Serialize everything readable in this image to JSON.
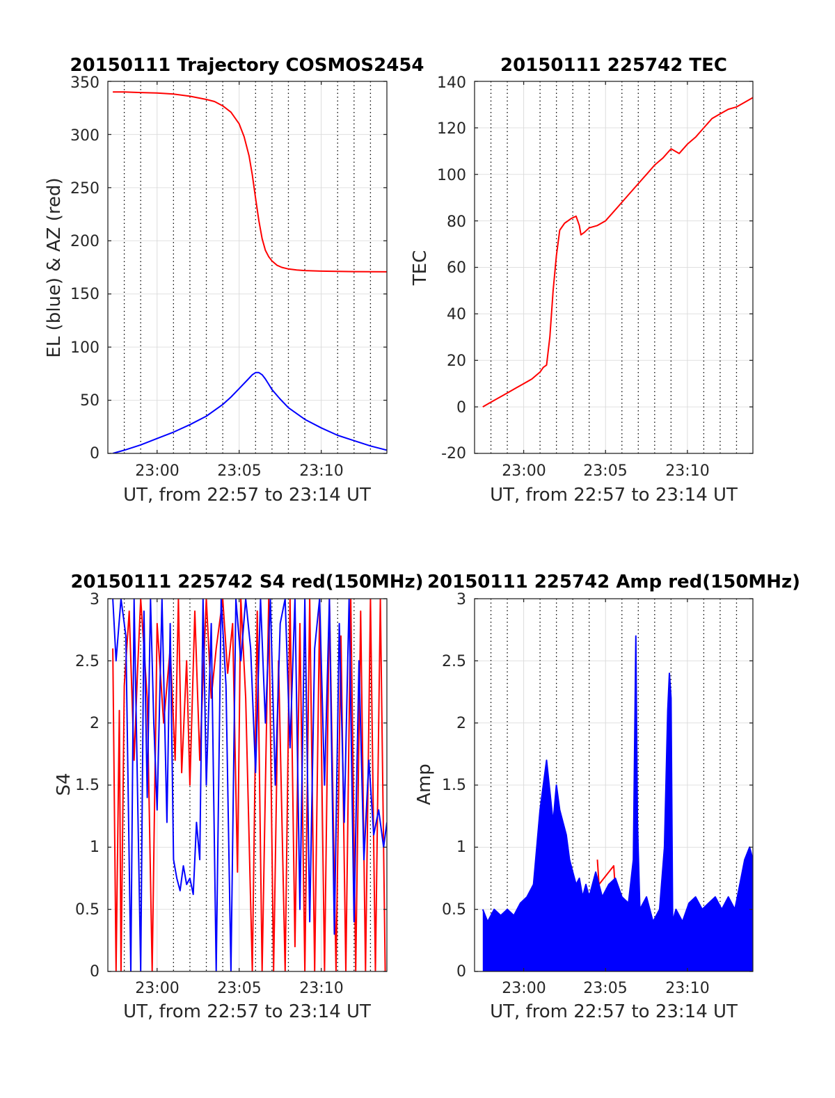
{
  "figure": {
    "background": "#ffffff"
  },
  "chart_data": [
    {
      "type": "line",
      "title": "20150111 Trajectory COSMOS2454",
      "xlabel": "UT, from 22:57 to 23:14 UT",
      "ylabel": "EL (blue) & AZ (red)",
      "x_unit": "minutes after 23:00 UT",
      "xlim": [
        -3.0,
        14.0
      ],
      "ylim": [
        0,
        350
      ],
      "xticks": [
        0,
        5,
        10
      ],
      "xtick_labels": [
        "23:00",
        "23:05",
        "23:10"
      ],
      "yticks": [
        0,
        50,
        100,
        150,
        200,
        250,
        300,
        350
      ],
      "ytick_labels": [
        "0",
        "50",
        "100",
        "150",
        "200",
        "250",
        "300",
        "350"
      ],
      "minor_x_grid": [
        -2,
        -1,
        1,
        2,
        3,
        4,
        6,
        7,
        8,
        9,
        11,
        12,
        13
      ],
      "grid": true,
      "series": [
        {
          "color": "#ff0000",
          "x": [
            -2.7,
            -2,
            -1,
            0,
            1,
            2,
            3,
            3.5,
            4,
            4.5,
            5,
            5.3,
            5.6,
            5.8,
            6,
            6.2,
            6.4,
            6.6,
            6.8,
            7.0,
            7.3,
            7.6,
            8,
            8.5,
            9,
            10,
            11,
            12,
            13,
            14
          ],
          "y": [
            340,
            340,
            339.5,
            339,
            338,
            336,
            333,
            331,
            327,
            321,
            310,
            298,
            280,
            262,
            240,
            219,
            202,
            191,
            185,
            181,
            177,
            175,
            173.5,
            172.5,
            172,
            171.5,
            171.2,
            171,
            170.9,
            170.8
          ]
        },
        {
          "color": "#0000ff",
          "x": [
            -2.7,
            -2,
            -1,
            0,
            1,
            2,
            3,
            4,
            4.5,
            5,
            5.5,
            5.8,
            6.0,
            6.2,
            6.4,
            6.6,
            6.8,
            7,
            7.5,
            8,
            9,
            10,
            11,
            12,
            13,
            14
          ],
          "y": [
            0,
            3,
            8,
            14,
            20,
            27,
            35,
            46,
            53,
            61,
            69,
            74,
            76,
            76,
            74,
            70,
            65,
            60,
            51,
            43,
            32,
            24,
            17,
            12,
            7,
            3
          ]
        }
      ]
    },
    {
      "type": "line",
      "title": "20150111 225742 TEC",
      "xlabel": "UT, from 22:57 to 23:14 UT",
      "ylabel": "TEC",
      "x_unit": "minutes after 23:00 UT",
      "xlim": [
        -3.0,
        14.0
      ],
      "ylim": [
        -20,
        140
      ],
      "xticks": [
        0,
        5,
        10
      ],
      "xtick_labels": [
        "23:00",
        "23:05",
        "23:10"
      ],
      "yticks": [
        -20,
        0,
        20,
        40,
        60,
        80,
        100,
        120,
        140
      ],
      "ytick_labels": [
        "-20",
        "0",
        "20",
        "40",
        "60",
        "80",
        "100",
        "120",
        "140"
      ],
      "minor_x_grid": [
        -2,
        -1,
        1,
        2,
        3,
        4,
        6,
        7,
        8,
        9,
        11,
        12,
        13
      ],
      "grid": true,
      "series": [
        {
          "color": "#ff0000",
          "x": [
            -2.5,
            -2,
            -1.5,
            -1,
            -0.5,
            0,
            0.5,
            1,
            1.2,
            1.4,
            1.6,
            1.8,
            2.0,
            2.2,
            2.5,
            2.9,
            3.2,
            3.4,
            3.5,
            3.7,
            4,
            4.5,
            5,
            5.5,
            6,
            6.5,
            7,
            7.5,
            8,
            8.5,
            9,
            9.5,
            10,
            10.5,
            11,
            11.5,
            12,
            12.5,
            13,
            13.5,
            14
          ],
          "y": [
            0,
            2,
            4,
            6,
            8,
            10,
            12,
            15,
            17,
            18,
            30,
            50,
            65,
            76,
            79,
            81,
            82,
            78,
            74,
            75,
            77,
            78,
            80,
            84,
            88,
            92,
            96,
            100,
            104,
            107,
            111,
            109,
            113,
            116,
            120,
            124,
            126,
            128,
            129,
            131,
            133
          ]
        }
      ]
    },
    {
      "type": "line",
      "title": "20150111 225742 S4 red(150MHz)",
      "xlabel": "UT, from 22:57 to 23:14 UT",
      "ylabel": "S4",
      "x_unit": "minutes after 23:00 UT",
      "xlim": [
        -3.0,
        14.0
      ],
      "ylim": [
        0,
        3
      ],
      "xticks": [
        0,
        5,
        10
      ],
      "xtick_labels": [
        "23:00",
        "23:05",
        "23:10"
      ],
      "yticks": [
        0,
        0.5,
        1,
        1.5,
        2,
        2.5,
        3
      ],
      "ytick_labels": [
        "0",
        "0.5",
        "1",
        "1.5",
        "2",
        "2.5",
        "3"
      ],
      "minor_x_grid": [
        -2,
        -1,
        1,
        2,
        3,
        4,
        6,
        7,
        8,
        9,
        11,
        12,
        13
      ],
      "grid": true,
      "series": [
        {
          "color": "#ff0000",
          "x": [
            -2.7,
            -2.5,
            -2.3,
            -2.2,
            -2.0,
            -1.7,
            -1.4,
            -1.2,
            -1,
            -0.6,
            -0.3,
            0,
            0.4,
            0.8,
            1.1,
            1.3,
            1.5,
            1.8,
            2,
            2.3,
            2.6,
            3.0,
            3.3,
            3.6,
            4,
            4.3,
            4.6,
            4.9,
            5.1,
            5.4,
            5.8,
            6.1,
            6.4,
            6.8,
            7.1,
            7.4,
            7.8,
            8.1,
            8.4,
            8.7,
            9.0,
            9.3,
            9.6,
            9.9,
            10.2,
            10.5,
            10.9,
            11.2,
            11.5,
            11.8,
            12.1,
            12.4,
            12.7,
            13,
            13.3,
            13.6,
            13.9
          ],
          "y": [
            2.6,
            0,
            2.1,
            0,
            2.3,
            2.9,
            1.7,
            2.4,
            3,
            2.2,
            0,
            2.8,
            2.0,
            2.6,
            1.7,
            3,
            1.6,
            2.5,
            1.5,
            2.9,
            1.7,
            3,
            2.2,
            2.6,
            3,
            2.4,
            2.8,
            0.8,
            3,
            2.2,
            0,
            2.9,
            0,
            3,
            0,
            2.5,
            0,
            3,
            0.2,
            2.8,
            0,
            3,
            0,
            2.9,
            0,
            3,
            0,
            2.7,
            0,
            3,
            0,
            2.9,
            0,
            3,
            0,
            3,
            0
          ]
        },
        {
          "color": "#0000ff",
          "x": [
            -2.7,
            -2.5,
            -2.2,
            -1.9,
            -1.6,
            -1.4,
            -1.2,
            -1.0,
            -0.8,
            -0.6,
            -0.4,
            -0.2,
            0,
            0.3,
            0.6,
            0.8,
            1.0,
            1.2,
            1.4,
            1.6,
            1.8,
            2.0,
            2.2,
            2.4,
            2.6,
            2.8,
            3.0,
            3.3,
            3.6,
            3.9,
            4.2,
            4.5,
            4.8,
            5.1,
            5.4,
            5.7,
            6,
            6.3,
            6.6,
            6.9,
            7.2,
            7.5,
            7.8,
            8.1,
            8.4,
            8.7,
            9.0,
            9.3,
            9.6,
            9.9,
            10.2,
            10.5,
            10.8,
            11.1,
            11.4,
            11.7,
            12.0,
            12.3,
            12.6,
            12.9,
            13.2,
            13.5,
            13.8,
            14
          ],
          "y": [
            3,
            2.5,
            3,
            2.7,
            0,
            3,
            1.5,
            0,
            2.9,
            1.4,
            3,
            2.0,
            1.3,
            3,
            1.2,
            2.8,
            0.9,
            0.75,
            0.65,
            0.85,
            0.7,
            0.75,
            0.62,
            1.2,
            0.9,
            3,
            1.5,
            2.8,
            0,
            3,
            2.3,
            0,
            3,
            2.5,
            3,
            2.6,
            1.6,
            3,
            2.0,
            3,
            1.5,
            2.8,
            3,
            1.8,
            3,
            0.5,
            3,
            0.4,
            2.6,
            3,
            1.5,
            3,
            0.3,
            2.8,
            1.2,
            3,
            0.4,
            2.5,
            0.9,
            1.7,
            1.1,
            1.3,
            1.0,
            1.2
          ]
        }
      ]
    },
    {
      "type": "line",
      "title": "20150111 225742 Amp red(150MHz)",
      "xlabel": "UT, from 22:57 to 23:14 UT",
      "ylabel": "Amp",
      "x_unit": "minutes after 23:00 UT",
      "xlim": [
        -3.0,
        14.0
      ],
      "ylim": [
        0,
        3
      ],
      "xticks": [
        0,
        5,
        10
      ],
      "xtick_labels": [
        "23:00",
        "23:05",
        "23:10"
      ],
      "yticks": [
        0,
        0.5,
        1,
        1.5,
        2,
        2.5,
        3
      ],
      "ytick_labels": [
        "0",
        "0.5",
        "1",
        "1.5",
        "2",
        "2.5",
        "3"
      ],
      "minor_x_grid": [
        -2,
        -1,
        1,
        2,
        3,
        4,
        6,
        7,
        8,
        9,
        11,
        12,
        13
      ],
      "grid": true,
      "series": [
        {
          "color": "#ff0000",
          "x": [
            4.5,
            4.6,
            5.5,
            5.6,
            8.8,
            8.9,
            9.0
          ],
          "y": [
            0.9,
            0.7,
            0.85,
            0.65,
            0.05,
            0.1,
            0.05
          ]
        },
        {
          "color": "#0000ff",
          "x": [
            -2.5,
            -2.2,
            -1.8,
            -1.4,
            -1,
            -0.6,
            -0.2,
            0.2,
            0.6,
            1.0,
            1.4,
            1.8,
            2.0,
            2.2,
            2.4,
            2.6,
            2.8,
            3.0,
            3.2,
            3.4,
            3.6,
            3.8,
            4.0,
            4.4,
            4.8,
            5.2,
            5.6,
            6.0,
            6.4,
            6.7,
            6.85,
            6.95,
            7.1,
            7.5,
            7.9,
            8.3,
            8.6,
            8.8,
            8.9,
            9.0,
            9.1,
            9.3,
            9.7,
            10.1,
            10.5,
            10.9,
            11.3,
            11.7,
            12.1,
            12.5,
            12.9,
            13.2,
            13.5,
            13.8,
            14
          ],
          "y": [
            0.5,
            0.4,
            0.5,
            0.45,
            0.5,
            0.45,
            0.55,
            0.6,
            0.7,
            1.3,
            1.7,
            1.2,
            1.5,
            1.3,
            1.2,
            1.1,
            0.9,
            0.8,
            0.7,
            0.75,
            0.6,
            0.7,
            0.6,
            0.8,
            0.6,
            0.7,
            0.75,
            0.6,
            0.55,
            0.9,
            2.7,
            1.2,
            0.5,
            0.6,
            0.4,
            0.5,
            1.0,
            2.1,
            2.4,
            2.2,
            0.4,
            0.5,
            0.4,
            0.55,
            0.6,
            0.5,
            0.55,
            0.6,
            0.5,
            0.6,
            0.5,
            0.7,
            0.9,
            1.0,
            0.9
          ]
        }
      ]
    }
  ]
}
